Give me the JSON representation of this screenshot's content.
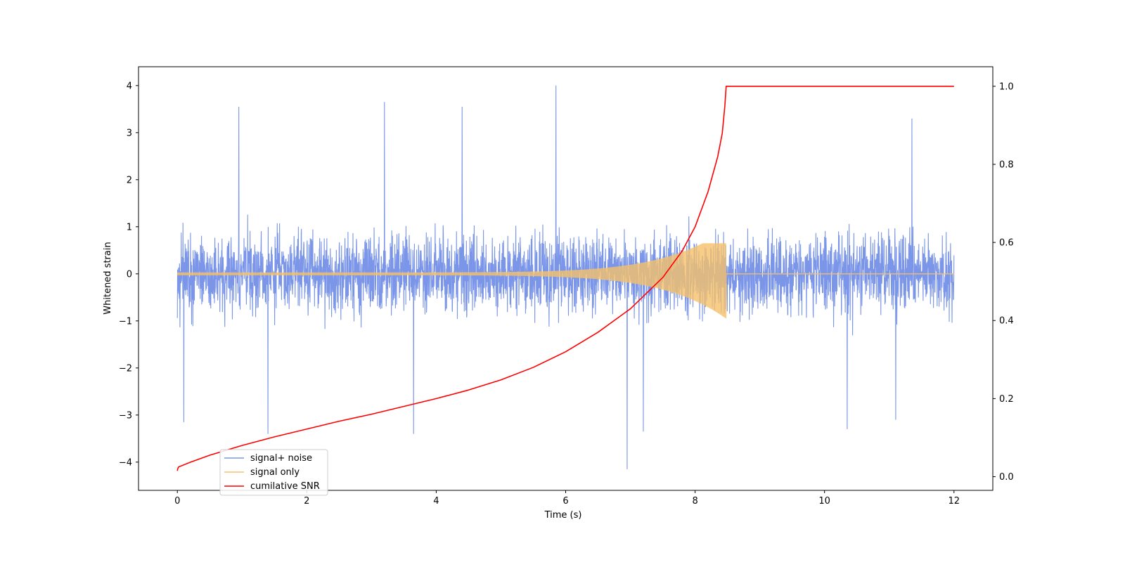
{
  "chart_data": {
    "type": "line",
    "xlabel": "Time (s)",
    "ylabel": "Whitened strain",
    "y2label": "",
    "xlim": [
      -0.6,
      12.6
    ],
    "ylim": [
      -4.6,
      4.4
    ],
    "y2lim": [
      -0.035,
      1.05
    ],
    "xticks": [
      0,
      2,
      4,
      6,
      8,
      10,
      12
    ],
    "yticks": [
      -4,
      -3,
      -2,
      -1,
      0,
      1,
      2,
      3,
      4
    ],
    "y2ticks": [
      0.0,
      0.2,
      0.4,
      0.6,
      0.8,
      1.0
    ],
    "xtick_labels": [
      "0",
      "2",
      "4",
      "6",
      "8",
      "10",
      "12"
    ],
    "ytick_labels": [
      "−4",
      "−3",
      "−2",
      "−1",
      "0",
      "1",
      "2",
      "3",
      "4"
    ],
    "y2tick_labels": [
      "0.0",
      "0.2",
      "0.4",
      "0.6",
      "0.8",
      "1.0"
    ],
    "grid": false,
    "legend_position": "lower-left",
    "series": [
      {
        "name": "signal+ noise",
        "color": "#7b96e8",
        "axis": "left",
        "kind": "noise",
        "time_range": [
          0,
          12
        ],
        "typical_envelope": [
          -1.6,
          1.7
        ],
        "peaks": [
          {
            "x": 0.1,
            "y": -3.15
          },
          {
            "x": 0.95,
            "y": 3.55
          },
          {
            "x": 1.4,
            "y": -3.4
          },
          {
            "x": 3.2,
            "y": 3.65
          },
          {
            "x": 3.65,
            "y": -3.4
          },
          {
            "x": 4.4,
            "y": 3.55
          },
          {
            "x": 5.85,
            "y": 4.0
          },
          {
            "x": 6.95,
            "y": -4.15
          },
          {
            "x": 7.2,
            "y": -3.35
          },
          {
            "x": 10.35,
            "y": -3.3
          },
          {
            "x": 11.1,
            "y": -3.1
          },
          {
            "x": 11.35,
            "y": 3.3
          }
        ]
      },
      {
        "name": "signal only",
        "color": "#f5c06a",
        "axis": "left",
        "kind": "chirp",
        "merger_time": 8.48,
        "amplitude_start": 0.03,
        "amplitude_peak_upper": 0.65,
        "amplitude_peak_lower": -0.95
      },
      {
        "name": "cumilative SNR",
        "color": "#ff0000",
        "axis": "right",
        "points": [
          [
            0.0,
            0.015
          ],
          [
            0.005,
            0.02
          ],
          [
            0.02,
            0.025
          ],
          [
            0.2,
            0.037
          ],
          [
            0.5,
            0.055
          ],
          [
            1.0,
            0.08
          ],
          [
            1.5,
            0.102
          ],
          [
            2.0,
            0.122
          ],
          [
            2.5,
            0.142
          ],
          [
            3.0,
            0.16
          ],
          [
            3.5,
            0.18
          ],
          [
            4.0,
            0.2
          ],
          [
            4.5,
            0.222
          ],
          [
            5.0,
            0.248
          ],
          [
            5.5,
            0.28
          ],
          [
            6.0,
            0.32
          ],
          [
            6.5,
            0.37
          ],
          [
            7.0,
            0.43
          ],
          [
            7.5,
            0.51
          ],
          [
            7.8,
            0.578
          ],
          [
            8.0,
            0.64
          ],
          [
            8.2,
            0.73
          ],
          [
            8.35,
            0.82
          ],
          [
            8.42,
            0.88
          ],
          [
            8.46,
            0.95
          ],
          [
            8.48,
            1.0
          ],
          [
            12.0,
            1.0
          ]
        ]
      }
    ]
  }
}
